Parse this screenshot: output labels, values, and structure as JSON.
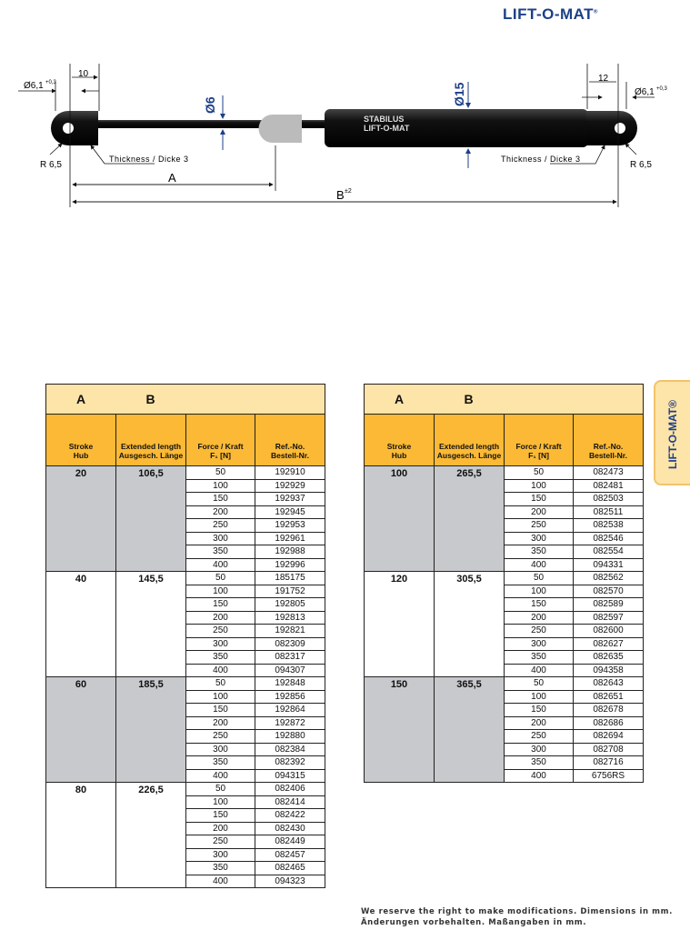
{
  "brand": {
    "logo": "LIFT-O-MAT",
    "reg": "®",
    "side_tab": "LIFT-O-MAT®",
    "logo_color": "#1d3f86"
  },
  "diagram": {
    "eye_dia_left": "Ø6,1",
    "eye_tol": "+0,3",
    "eye_dia_right": "Ø6,1",
    "width_left": "10",
    "width_right": "12",
    "rod_dia": "Ø6",
    "tube_dia": "Ø15",
    "radius_left": "R 6,5",
    "radius_right": "R 6,5",
    "thickness_left": "Thickness / Dicke 3",
    "thickness_right": "Thickness / Dicke 3",
    "dim_a": "A",
    "dim_b": "B",
    "dim_b_tol": "±2",
    "tube_text_1": "STABILUS",
    "tube_text_2": "LIFT-O-MAT"
  },
  "table": {
    "col_a": "A",
    "col_b": "B",
    "headers": [
      [
        "Stroke",
        "Hub"
      ],
      [
        "Extended length",
        "Ausgesch. Länge"
      ],
      [
        "Force / Kraft",
        "F₁ [N]"
      ],
      [
        "Ref.-No.",
        "Bestell-Nr."
      ]
    ],
    "forces": [
      "50",
      "100",
      "150",
      "200",
      "250",
      "300",
      "350",
      "400"
    ],
    "left": [
      {
        "stroke": "20",
        "length": "106,5",
        "refs": [
          "192910",
          "192929",
          "192937",
          "192945",
          "192953",
          "192961",
          "192988",
          "192996"
        ]
      },
      {
        "stroke": "40",
        "length": "145,5",
        "refs": [
          "185175",
          "191752",
          "192805",
          "192813",
          "192821",
          "082309",
          "082317",
          "094307"
        ]
      },
      {
        "stroke": "60",
        "length": "185,5",
        "refs": [
          "192848",
          "192856",
          "192864",
          "192872",
          "192880",
          "082384",
          "082392",
          "094315"
        ]
      },
      {
        "stroke": "80",
        "length": "226,5",
        "refs": [
          "082406",
          "082414",
          "082422",
          "082430",
          "082449",
          "082457",
          "082465",
          "094323"
        ]
      }
    ],
    "right": [
      {
        "stroke": "100",
        "length": "265,5",
        "refs": [
          "082473",
          "082481",
          "082503",
          "082511",
          "082538",
          "082546",
          "082554",
          "094331"
        ]
      },
      {
        "stroke": "120",
        "length": "305,5",
        "refs": [
          "082562",
          "082570",
          "082589",
          "082597",
          "082600",
          "082627",
          "082635",
          "094358"
        ]
      },
      {
        "stroke": "150",
        "length": "365,5",
        "refs": [
          "082643",
          "082651",
          "082678",
          "082686",
          "082694",
          "082708",
          "082716",
          "6756RS"
        ]
      }
    ]
  },
  "footer": {
    "line1": "We reserve the right to make modifications. Dimensions in mm.",
    "line2": "Änderungen vorbehalten. Maßangaben in mm."
  }
}
